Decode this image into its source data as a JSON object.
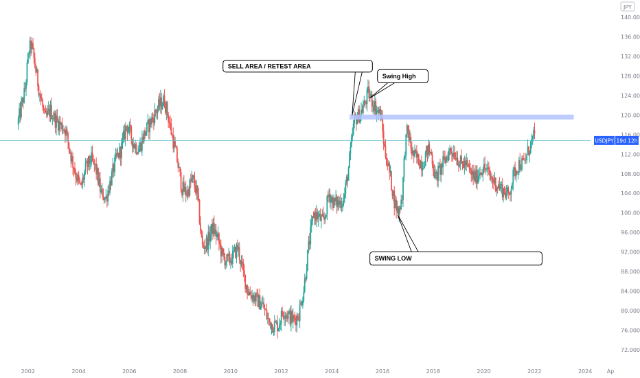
{
  "chart_data": {
    "type": "candlestick",
    "symbol": "USDJPY",
    "currency_badge": "JPY",
    "price_label": {
      "symbol": "USDJPY",
      "timer": "19d 12h",
      "value": 114.8
    },
    "y_axis": {
      "range": [
        70,
        142
      ],
      "ticks": [
        140,
        136,
        132,
        128,
        124,
        120,
        116,
        112,
        108,
        104,
        100,
        96,
        92,
        88,
        84,
        80,
        76,
        72
      ],
      "tick_labels": [
        "140.000",
        "136.000",
        "132.000",
        "128.000",
        "124.000",
        "120.000",
        "116.000",
        "112.000",
        "108.000",
        "104.000",
        "100.000",
        "96.000",
        "92.000",
        "88.000",
        "84.000",
        "80.000",
        "76.000",
        "72.000"
      ]
    },
    "x_axis": {
      "range": [
        2001.6,
        2025.0
      ],
      "ticks": [
        {
          "value": 2002,
          "label": "2002"
        },
        {
          "value": 2004,
          "label": "2004"
        },
        {
          "value": 2006,
          "label": "2006"
        },
        {
          "value": 2008,
          "label": "2008"
        },
        {
          "value": 2010,
          "label": "2010"
        },
        {
          "value": 2012,
          "label": "2012"
        },
        {
          "value": 2014,
          "label": "2014"
        },
        {
          "value": 2016,
          "label": "2016"
        },
        {
          "value": 2018,
          "label": "2018"
        },
        {
          "value": 2020,
          "label": "2020"
        },
        {
          "value": 2022,
          "label": "2022"
        },
        {
          "value": 2024,
          "label": "2024"
        },
        {
          "value": 2025.0,
          "label": "Ap"
        }
      ]
    },
    "price_path": [
      [
        2001.6,
        118
      ],
      [
        2001.9,
        125
      ],
      [
        2002.05,
        133
      ],
      [
        2002.15,
        134.5
      ],
      [
        2002.3,
        130
      ],
      [
        2002.5,
        124
      ],
      [
        2002.7,
        119
      ],
      [
        2002.9,
        121
      ],
      [
        2003.1,
        119
      ],
      [
        2003.3,
        118
      ],
      [
        2003.5,
        117
      ],
      [
        2003.7,
        112
      ],
      [
        2003.9,
        108
      ],
      [
        2004.1,
        105
      ],
      [
        2004.3,
        109
      ],
      [
        2004.5,
        111
      ],
      [
        2004.7,
        109
      ],
      [
        2004.9,
        104
      ],
      [
        2005.1,
        103
      ],
      [
        2005.3,
        107
      ],
      [
        2005.5,
        111
      ],
      [
        2005.7,
        113
      ],
      [
        2005.9,
        118
      ],
      [
        2006.0,
        117
      ],
      [
        2006.2,
        114
      ],
      [
        2006.4,
        113
      ],
      [
        2006.6,
        116
      ],
      [
        2006.8,
        118
      ],
      [
        2007.0,
        120
      ],
      [
        2007.2,
        122
      ],
      [
        2007.4,
        123
      ],
      [
        2007.5,
        121
      ],
      [
        2007.7,
        116
      ],
      [
        2007.9,
        111
      ],
      [
        2008.1,
        105
      ],
      [
        2008.3,
        104
      ],
      [
        2008.5,
        107
      ],
      [
        2008.7,
        104
      ],
      [
        2008.9,
        93
      ],
      [
        2009.1,
        94
      ],
      [
        2009.3,
        97
      ],
      [
        2009.5,
        95
      ],
      [
        2009.7,
        91
      ],
      [
        2009.9,
        90
      ],
      [
        2010.1,
        91
      ],
      [
        2010.3,
        93
      ],
      [
        2010.5,
        88
      ],
      [
        2010.7,
        84
      ],
      [
        2010.9,
        83
      ],
      [
        2011.1,
        82
      ],
      [
        2011.3,
        81
      ],
      [
        2011.5,
        78
      ],
      [
        2011.7,
        77
      ],
      [
        2011.9,
        77
      ],
      [
        2012.1,
        80
      ],
      [
        2012.3,
        79
      ],
      [
        2012.5,
        78
      ],
      [
        2012.7,
        79
      ],
      [
        2012.9,
        84
      ],
      [
        2013.1,
        93
      ],
      [
        2013.3,
        100
      ],
      [
        2013.5,
        99
      ],
      [
        2013.7,
        98
      ],
      [
        2013.9,
        104
      ],
      [
        2014.1,
        102
      ],
      [
        2014.3,
        102
      ],
      [
        2014.5,
        103
      ],
      [
        2014.7,
        110
      ],
      [
        2014.9,
        119
      ],
      [
        2015.1,
        120
      ],
      [
        2015.3,
        122
      ],
      [
        2015.45,
        124.5
      ],
      [
        2015.6,
        123
      ],
      [
        2015.8,
        121
      ],
      [
        2015.95,
        120
      ],
      [
        2016.1,
        113
      ],
      [
        2016.3,
        108
      ],
      [
        2016.5,
        102
      ],
      [
        2016.65,
        100
      ],
      [
        2016.8,
        104
      ],
      [
        2016.9,
        113
      ],
      [
        2017.0,
        117
      ],
      [
        2017.2,
        112
      ],
      [
        2017.4,
        111
      ],
      [
        2017.6,
        110
      ],
      [
        2017.8,
        113
      ],
      [
        2017.95,
        112
      ],
      [
        2018.1,
        107
      ],
      [
        2018.3,
        109
      ],
      [
        2018.5,
        111
      ],
      [
        2018.7,
        113
      ],
      [
        2018.9,
        112
      ],
      [
        2019.1,
        110
      ],
      [
        2019.3,
        110
      ],
      [
        2019.5,
        108
      ],
      [
        2019.7,
        107
      ],
      [
        2019.9,
        109
      ],
      [
        2020.1,
        109
      ],
      [
        2020.3,
        107
      ],
      [
        2020.5,
        106
      ],
      [
        2020.7,
        105
      ],
      [
        2020.9,
        104
      ],
      [
        2021.0,
        103.5
      ],
      [
        2021.2,
        108
      ],
      [
        2021.4,
        110
      ],
      [
        2021.6,
        110
      ],
      [
        2021.8,
        113
      ],
      [
        2021.9,
        114.5
      ],
      [
        2022.0,
        115.5
      ]
    ],
    "zones": [
      {
        "from_x": 2014.7,
        "to_x": 2023.55,
        "y_low": 119.1,
        "y_high": 120.1,
        "color": "#b3c4ff"
      }
    ],
    "current_price_line": {
      "y": 114.8,
      "color": "#5bbcc7"
    },
    "annotations": [
      {
        "text": "SELL AREA / RETEST AREA",
        "box_x": [
          2009.7,
          2015.6
        ],
        "box_y": [
          131.2,
          128.8
        ],
        "target": [
          2014.8,
          120.0
        ]
      },
      {
        "text": "Swing High",
        "box_x": [
          2015.8,
          2017.8
        ],
        "box_y": [
          129.3,
          126.6
        ],
        "target": [
          2015.5,
          123.5
        ]
      },
      {
        "text": "SWING LOW",
        "box_x": [
          2015.5,
          2022.3
        ],
        "box_y": [
          92.0,
          89.3
        ],
        "target": [
          2016.6,
          99.6
        ]
      }
    ],
    "colors": {
      "up": "#26a69a",
      "down": "#ef5350",
      "badge": "#2962ff",
      "axis_text": "#787b86"
    }
  }
}
